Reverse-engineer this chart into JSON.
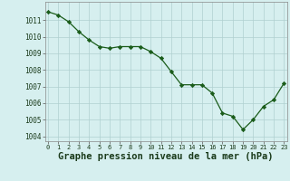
{
  "x": [
    0,
    1,
    2,
    3,
    4,
    5,
    6,
    7,
    8,
    9,
    10,
    11,
    12,
    13,
    14,
    15,
    16,
    17,
    18,
    19,
    20,
    21,
    22,
    23
  ],
  "y": [
    1011.5,
    1011.3,
    1010.9,
    1010.3,
    1009.8,
    1009.4,
    1009.3,
    1009.4,
    1009.4,
    1009.4,
    1009.1,
    1008.7,
    1007.9,
    1007.1,
    1007.1,
    1007.1,
    1006.6,
    1005.4,
    1005.2,
    1004.4,
    1005.0,
    1005.8,
    1006.2,
    1007.2
  ],
  "line_color": "#1a5c1a",
  "marker": "D",
  "marker_size": 2.2,
  "bg_color": "#d6efef",
  "grid_color": "#b0d0d0",
  "title": "Graphe pression niveau de la mer (hPa)",
  "title_fontsize": 7.5,
  "title_color": "#1a3a1a",
  "xlabel_ticks": [
    0,
    1,
    2,
    3,
    4,
    5,
    6,
    7,
    8,
    9,
    10,
    11,
    12,
    13,
    14,
    15,
    16,
    17,
    18,
    19,
    20,
    21,
    22,
    23
  ],
  "ytick_labels": [
    1004,
    1005,
    1006,
    1007,
    1008,
    1009,
    1010,
    1011
  ],
  "ylim": [
    1003.7,
    1012.1
  ],
  "xlim": [
    -0.3,
    23.3
  ]
}
